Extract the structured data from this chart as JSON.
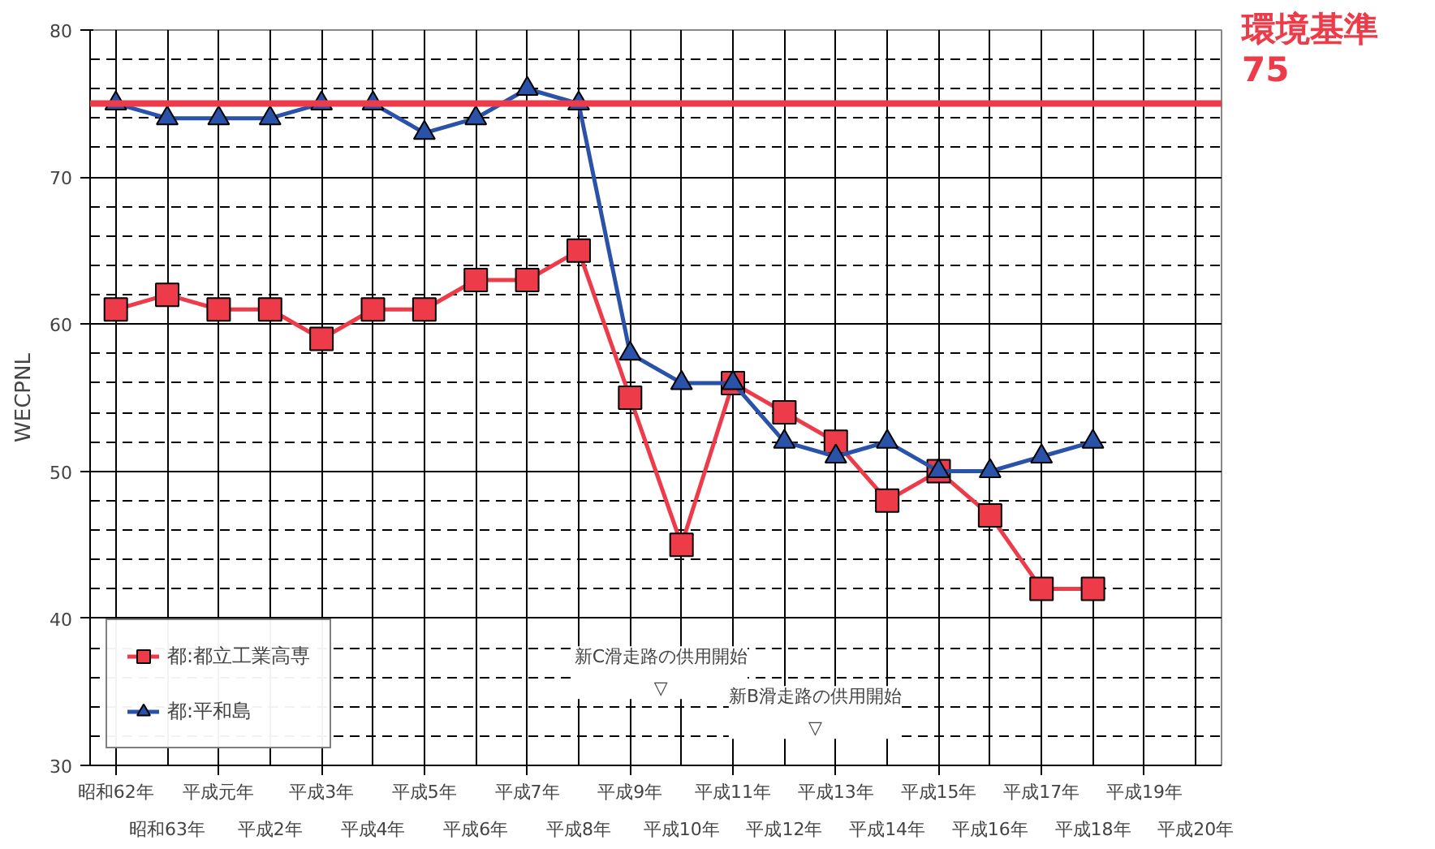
{
  "chart_data": {
    "type": "line",
    "ylabel": "WECPNL",
    "categories": [
      "昭和62年",
      "昭和63年",
      "平成元年",
      "平成2年",
      "平成3年",
      "平成4年",
      "平成5年",
      "平成6年",
      "平成7年",
      "平成8年",
      "平成9年",
      "平成10年",
      "平成11年",
      "平成12年",
      "平成13年",
      "平成14年",
      "平成15年",
      "平成16年",
      "平成17年",
      "平成18年",
      "平成19年",
      "平成20年"
    ],
    "series": [
      {
        "name": "都:都立工業高専",
        "color": "#ee3b4a",
        "marker": "square",
        "values": [
          61,
          62,
          61,
          61,
          59,
          61,
          61,
          63,
          63,
          65,
          55,
          45,
          56,
          54,
          52,
          48,
          50,
          47,
          42,
          42,
          null,
          null
        ]
      },
      {
        "name": "都:平和島",
        "color": "#2a52a8",
        "marker": "triangle",
        "values": [
          75,
          74,
          74,
          74,
          75,
          75,
          73,
          74,
          76,
          75,
          58,
          56,
          56,
          52,
          51,
          52,
          50,
          50,
          51,
          52,
          null,
          null
        ]
      }
    ],
    "ylim": [
      30,
      80
    ],
    "yticks": [
      30,
      {
        "value": 32,
        "label": null
      },
      {
        "value": 34,
        "label": null
      },
      {
        "value": 36,
        "label": null
      },
      {
        "value": 38,
        "label": null
      },
      40,
      {
        "value": 42,
        "label": null
      },
      {
        "value": 44,
        "label": null
      },
      {
        "value": 46,
        "label": null
      },
      {
        "value": 48,
        "label": null
      },
      50,
      {
        "value": 52,
        "label": null
      },
      {
        "value": 54,
        "label": null
      },
      {
        "value": 56,
        "label": null
      },
      {
        "value": 58,
        "label": null
      },
      60,
      {
        "value": 62,
        "label": null
      },
      {
        "value": 64,
        "label": null
      },
      {
        "value": 66,
        "label": null
      },
      {
        "value": 68,
        "label": null
      },
      70,
      {
        "value": 72,
        "label": null
      },
      {
        "value": 74,
        "label": null
      },
      {
        "value": 76,
        "label": null
      },
      {
        "value": 78,
        "label": null
      },
      80
    ],
    "ref_lines": [
      {
        "axis": "y",
        "value": 75,
        "label": "環境基準\n75",
        "color": "#ee3b4a"
      }
    ],
    "annotations": [
      "新C滑走路の供用開始\n▽",
      "新B滑走路の供用開始\n▽"
    ],
    "grid": true,
    "legend": "bottom left",
    "line_style": "solid"
  }
}
